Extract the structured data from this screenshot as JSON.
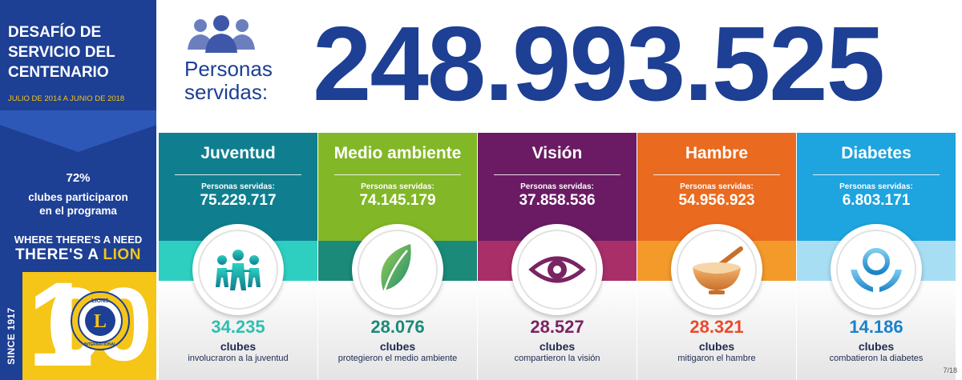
{
  "sidebar": {
    "title_line1": "DESAFÍO DE",
    "title_line2": "SERVICIO DEL",
    "title_line3": "CENTENARIO",
    "dates": "JULIO DE 2014 A JUNIO DE 2018",
    "participation_pct": "72%",
    "participation_desc_line1": "clubes participaron",
    "participation_desc_line2": "en el programa",
    "slogan_line1": "WHERE THERE'S A NEED",
    "slogan_line2_prefix": "THERE'S A ",
    "slogan_line2_highlight": "LION",
    "since": "SINCE 1917",
    "hundred_digit_1": "1",
    "hundred_digit_2": "0",
    "hundred_digit_3": "0",
    "logo_text_top": "LIONS",
    "logo_text_bottom": "INTERNATIONAL",
    "logo_letter": "L"
  },
  "header": {
    "persons_label_line1": "Personas",
    "persons_label_line2": "servidas:",
    "total_served": "248.993.525",
    "people_icon": "people-group-icon"
  },
  "columns": [
    {
      "name": "Juventud",
      "served_label": "Personas servidas:",
      "served_value": "75.229.717",
      "clubs_number": "34.235",
      "clubs_label": "clubes",
      "clubs_desc": "involucraron a la juventud",
      "icon": "children-icon",
      "number_color": "#2ebfb2"
    },
    {
      "name": "Medio ambiente",
      "served_label": "Personas servidas:",
      "served_value": "74.145.179",
      "clubs_number": "28.076",
      "clubs_label": "clubes",
      "clubs_desc": "protegieron el medio ambiente",
      "icon": "leaf-icon",
      "number_color": "#1b8a78"
    },
    {
      "name": "Visión",
      "served_label": "Personas servidas:",
      "served_value": "37.858.536",
      "clubs_number": "28.527",
      "clubs_label": "clubes",
      "clubs_desc": "compartieron la visión",
      "icon": "eye-icon",
      "number_color": "#7a2462"
    },
    {
      "name": "Hambre",
      "served_label": "Personas servidas:",
      "served_value": "54.956.923",
      "clubs_number": "28.321",
      "clubs_label": "clubes",
      "clubs_desc": "mitigaron el hambre",
      "icon": "bowl-icon",
      "number_color": "#ea4a2a"
    },
    {
      "name": "Diabetes",
      "served_label": "Personas servidas:",
      "served_value": "6.803.171",
      "clubs_number": "14.186",
      "clubs_label": "clubes",
      "clubs_desc": "combatieron la diabetes",
      "icon": "hands-ring-icon",
      "number_color": "#1a82c8"
    }
  ],
  "page_number": "7/18",
  "colors": {
    "brand_blue": "#1d3f94",
    "brand_yellow": "#f5c518"
  }
}
